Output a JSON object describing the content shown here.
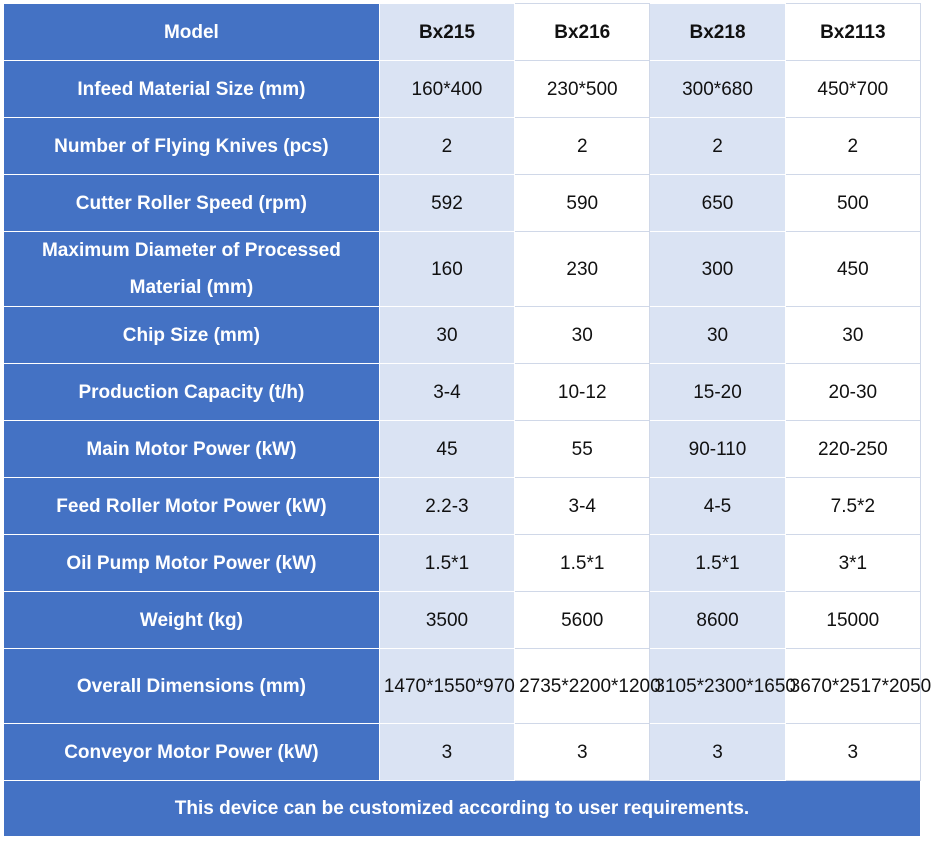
{
  "header": {
    "label": "Model",
    "models": [
      "Bx215",
      "Bx216",
      "Bx218",
      "Bx2113"
    ]
  },
  "rows": [
    {
      "label": "Infeed Material Size (mm)",
      "values": [
        "160*400",
        "230*500",
        "300*680",
        "450*700"
      ]
    },
    {
      "label": "Number of Flying Knives (pcs)",
      "values": [
        "2",
        "2",
        "2",
        "2"
      ]
    },
    {
      "label": "Cutter Roller Speed (rpm)",
      "values": [
        "592",
        "590",
        "650",
        "500"
      ]
    },
    {
      "label": "Maximum Diameter of Processed Material (mm)",
      "values": [
        "160",
        "230",
        "300",
        "450"
      ]
    },
    {
      "label": "Chip Size (mm)",
      "values": [
        "30",
        "30",
        "30",
        "30"
      ]
    },
    {
      "label": "Production Capacity (t/h)",
      "values": [
        "3-4",
        "10-12",
        "15-20",
        "20-30"
      ]
    },
    {
      "label": "Main Motor Power (kW)",
      "values": [
        "45",
        "55",
        "90-110",
        "220-250"
      ]
    },
    {
      "label": "Feed Roller Motor Power (kW)",
      "values": [
        "2.2-3",
        "3-4",
        "4-5",
        "7.5*2"
      ]
    },
    {
      "label": "Oil Pump Motor Power (kW)",
      "values": [
        "1.5*1",
        "1.5*1",
        "1.5*1",
        "3*1"
      ]
    },
    {
      "label": "Weight (kg)",
      "values": [
        "3500",
        "5600",
        "8600",
        "15000"
      ]
    },
    {
      "label": "Overall Dimensions (mm)",
      "values": [
        "1470*1550*970",
        "2735*2200*1200",
        "3105*2300*1650",
        "3670*2517*2050"
      ]
    },
    {
      "label": "Conveyor Motor Power (kW)",
      "values": [
        "3",
        "3",
        "3",
        "3"
      ]
    }
  ],
  "footer": "This device can be customized according to user requirements.",
  "colors": {
    "label_bg": "#4472c4",
    "alt_bg": "#dae3f3",
    "plain_bg": "#ffffff"
  }
}
